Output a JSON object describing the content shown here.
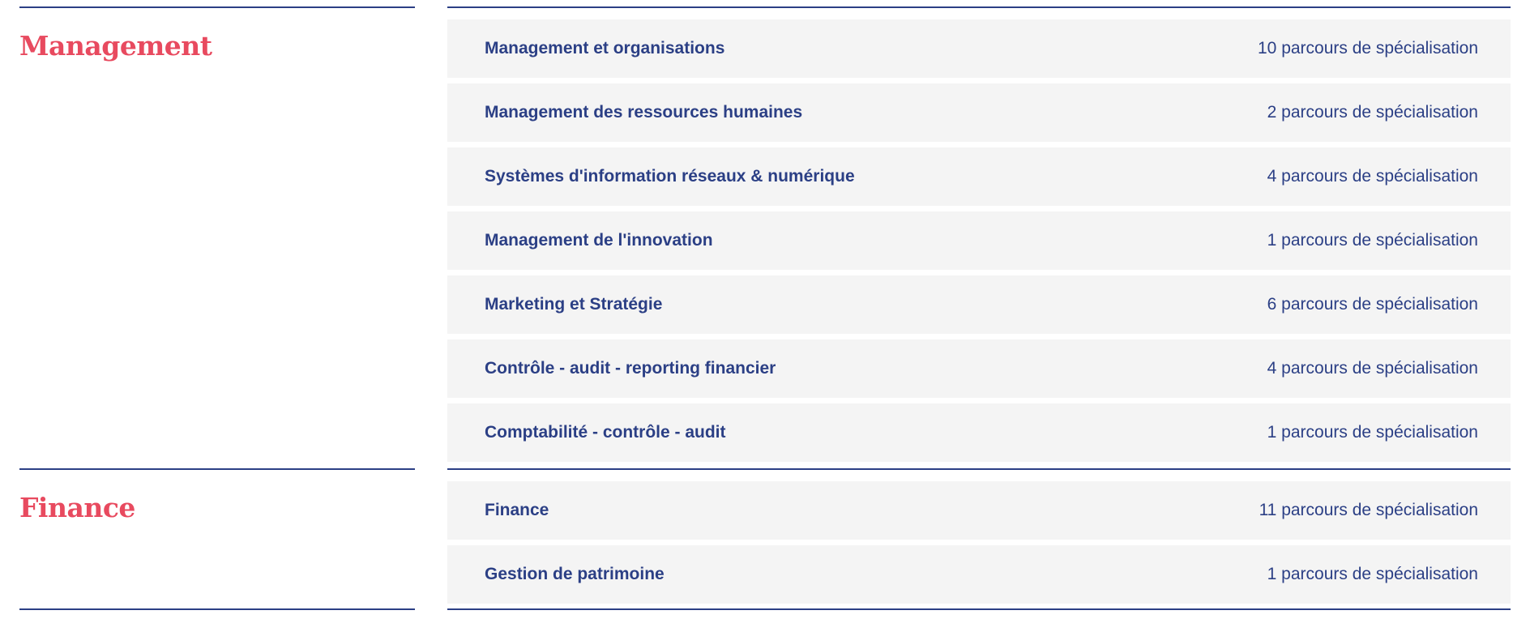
{
  "sections": [
    {
      "title": "Management",
      "items": [
        {
          "name": "Management et organisations",
          "count": "10 parcours de spécialisation"
        },
        {
          "name": "Management des ressources humaines",
          "count": "2 parcours de spécialisation"
        },
        {
          "name": "Systèmes d'information réseaux & numérique",
          "count": "4 parcours de spécialisation"
        },
        {
          "name": "Management de l'innovation",
          "count": "1 parcours de spécialisation"
        },
        {
          "name": "Marketing et Stratégie",
          "count": "6 parcours de spécialisation"
        },
        {
          "name": "Contrôle - audit - reporting financier",
          "count": "4 parcours de spécialisation"
        },
        {
          "name": "Comptabilité - contrôle - audit",
          "count": "1 parcours de spécialisation"
        }
      ]
    },
    {
      "title": "Finance",
      "items": [
        {
          "name": "Finance",
          "count": "11 parcours de spécialisation"
        },
        {
          "name": "Gestion de patrimoine",
          "count": "1 parcours de spécialisation"
        }
      ]
    }
  ],
  "colors": {
    "heading": "#e84a5f",
    "text": "#2b3f85",
    "row_bg": "#f4f4f4"
  }
}
